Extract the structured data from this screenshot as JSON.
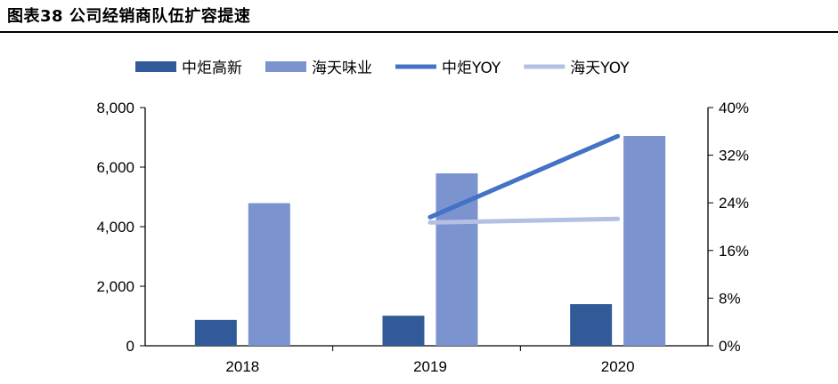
{
  "title": "图表38 公司经销商队伍扩容提速",
  "chart_data": {
    "type": "bar",
    "title": "图表38 公司经销商队伍扩容提速",
    "categories": [
      "2018",
      "2019",
      "2020"
    ],
    "series": [
      {
        "name": "中炬高新",
        "kind": "bar",
        "axis": "left",
        "color": "#325a99",
        "values": [
          870,
          1010,
          1400
        ]
      },
      {
        "name": "海天味业",
        "kind": "bar",
        "axis": "left",
        "color": "#7b93cf",
        "values": [
          4790,
          5790,
          7045
        ]
      },
      {
        "name": "中炬YOY",
        "kind": "line",
        "axis": "right",
        "color": "#4472c4",
        "values": [
          null,
          21.6,
          35.2
        ]
      },
      {
        "name": "海天YOY",
        "kind": "line",
        "axis": "right",
        "color": "#b4c0e2",
        "values": [
          null,
          20.7,
          21.3
        ]
      }
    ],
    "left_axis": {
      "min": 0,
      "max": 8000,
      "ticks": [
        "0",
        "2,000",
        "4,000",
        "6,000",
        "8,000"
      ]
    },
    "right_axis": {
      "min": 0,
      "max": 40,
      "ticks": [
        "0%",
        "8%",
        "16%",
        "24%",
        "32%",
        "40%"
      ]
    },
    "legend": "top",
    "grid": false
  }
}
